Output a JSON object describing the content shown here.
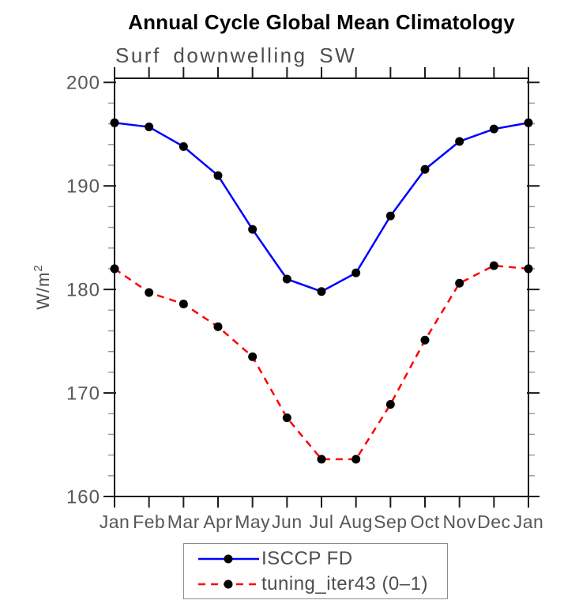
{
  "chart_data": {
    "type": "line",
    "title": "Annual Cycle Global Mean Climatology",
    "subtitle": "Surf downwelling SW",
    "ylabel_base": "W/m",
    "ylabel_superscript": "2",
    "xlabel": "",
    "x_tick_labels": [
      "Jan",
      "Feb",
      "Mar",
      "Apr",
      "May",
      "Jun",
      "Jul",
      "Aug",
      "Sep",
      "Oct",
      "Nov",
      "Dec",
      "Jan"
    ],
    "ylim": [
      160,
      200.4
    ],
    "yticks_major": [
      160,
      170,
      180,
      190,
      200
    ],
    "ytick_minor_step": 2,
    "grid": false,
    "legend_position": "bottom-center",
    "axis_color": "#1c1c1c",
    "minor_tick_color": "#959595",
    "text_color": "#575757",
    "marker_color": "#000000",
    "series": [
      {
        "name": "ISCCP FD",
        "color": "#0000ff",
        "style": "solid",
        "marker": "filled-circle",
        "values": [
          196.1,
          195.7,
          193.8,
          191.0,
          185.8,
          181.0,
          179.8,
          181.6,
          187.1,
          191.6,
          194.3,
          195.5,
          196.1
        ]
      },
      {
        "name": "tuning_iter43 (0–1)",
        "color": "#ff0000",
        "style": "dashed",
        "marker": "filled-circle",
        "values": [
          182.0,
          179.7,
          178.6,
          176.4,
          173.5,
          167.6,
          163.6,
          163.6,
          168.9,
          175.1,
          180.6,
          182.3,
          182.0
        ]
      }
    ]
  }
}
